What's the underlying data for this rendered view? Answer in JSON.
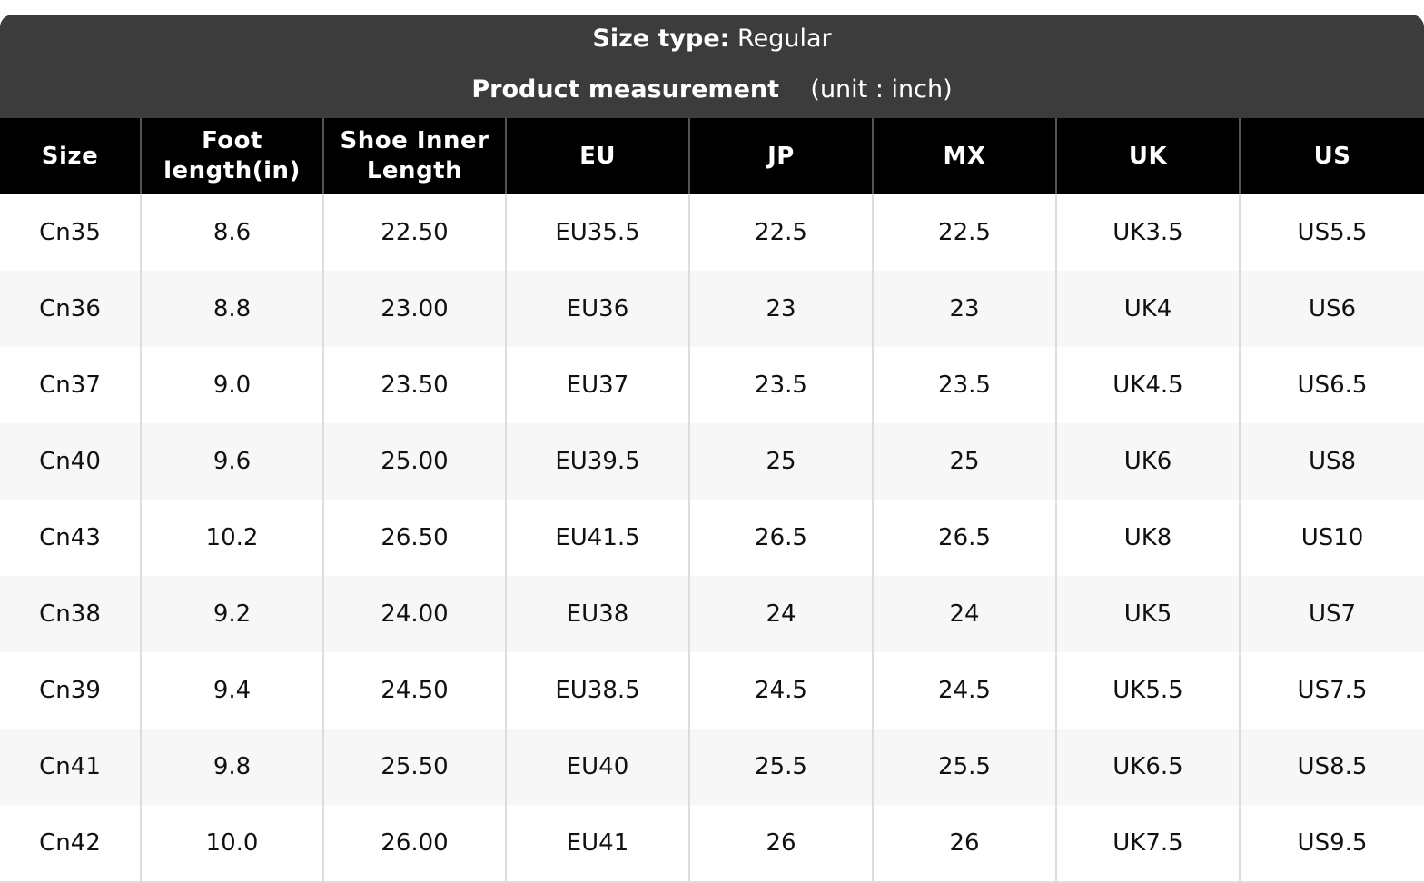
{
  "header": {
    "size_type_label": "Size type:",
    "size_type": "Regular",
    "measurement_label": "Product measurement",
    "unit": "(unit : inch)"
  },
  "table": {
    "columns": [
      "Size",
      "Foot length(in)",
      "Shoe Inner Length",
      "EU",
      "JP",
      "MX",
      "UK",
      "US"
    ],
    "rows": [
      [
        "Cn35",
        "8.6",
        "22.50",
        "EU35.5",
        "22.5",
        "22.5",
        "UK3.5",
        "US5.5"
      ],
      [
        "Cn36",
        "8.8",
        "23.00",
        "EU36",
        "23",
        "23",
        "UK4",
        "US6"
      ],
      [
        "Cn37",
        "9.0",
        "23.50",
        "EU37",
        "23.5",
        "23.5",
        "UK4.5",
        "US6.5"
      ],
      [
        "Cn40",
        "9.6",
        "25.00",
        "EU39.5",
        "25",
        "25",
        "UK6",
        "US8"
      ],
      [
        "Cn43",
        "10.2",
        "26.50",
        "EU41.5",
        "26.5",
        "26.5",
        "UK8",
        "US10"
      ],
      [
        "Cn38",
        "9.2",
        "24.00",
        "EU38",
        "24",
        "24",
        "UK5",
        "US7"
      ],
      [
        "Cn39",
        "9.4",
        "24.50",
        "EU38.5",
        "24.5",
        "24.5",
        "UK5.5",
        "US7.5"
      ],
      [
        "Cn41",
        "9.8",
        "25.50",
        "EU40",
        "25.5",
        "25.5",
        "UK6.5",
        "US8.5"
      ],
      [
        "Cn42",
        "10.0",
        "26.00",
        "EU41",
        "26",
        "26",
        "UK7.5",
        "US9.5"
      ]
    ]
  }
}
